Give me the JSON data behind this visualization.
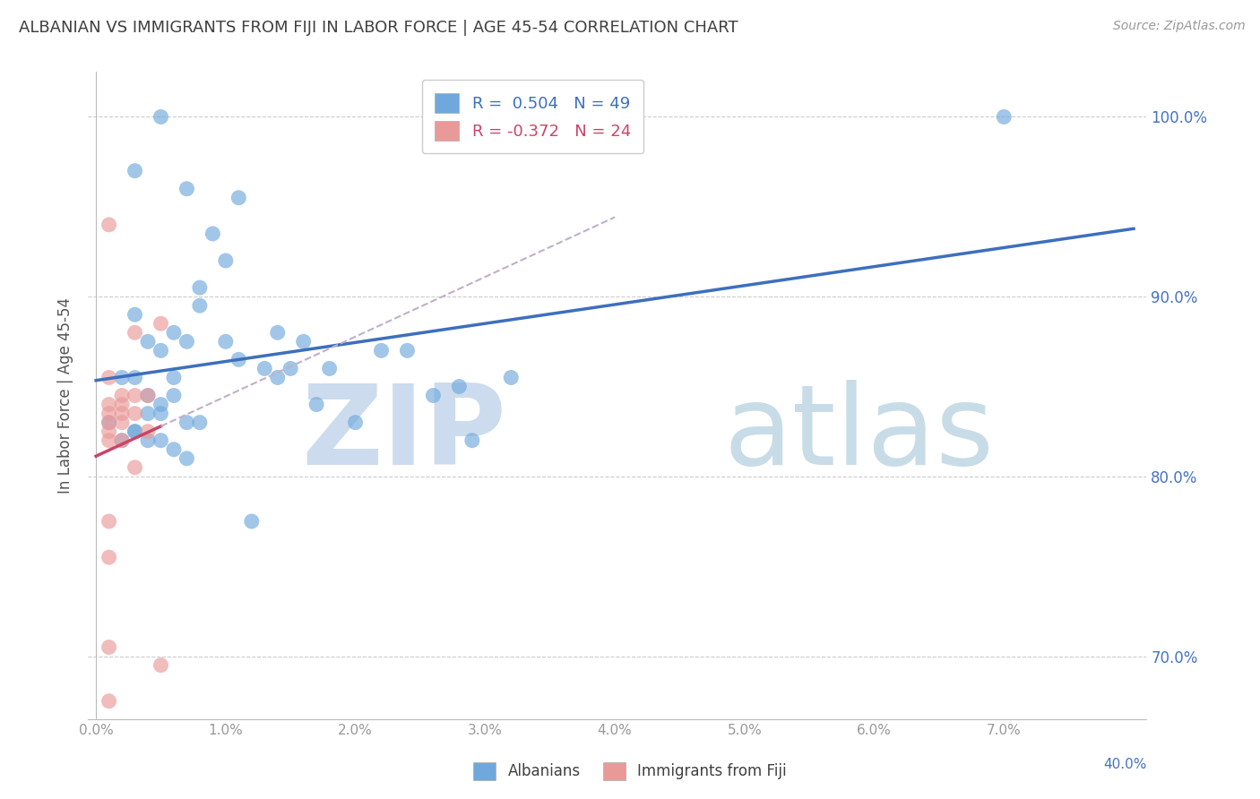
{
  "title": "ALBANIAN VS IMMIGRANTS FROM FIJI IN LABOR FORCE | AGE 45-54 CORRELATION CHART",
  "source": "Source: ZipAtlas.com",
  "ylabel": "In Labor Force | Age 45-54",
  "legend_label_blue": "Albanians",
  "legend_label_pink": "Immigrants from Fiji",
  "r_blue": 0.504,
  "n_blue": 49,
  "r_pink": -0.372,
  "n_pink": 24,
  "xlim": [
    -0.3,
    40.5
  ],
  "ylim": [
    0.665,
    1.025
  ],
  "xtick_vals": [
    0.0,
    5.0,
    10.0,
    15.0,
    20.0,
    25.0,
    30.0,
    35.0,
    40.0
  ],
  "xtick_labels": [
    "0.0%",
    "1.0%",
    "2.0%",
    "3.0%",
    "4.0%",
    "5.0%",
    "6.0%",
    "7.0%",
    ""
  ],
  "ytick_vals": [
    0.7,
    0.8,
    0.9,
    1.0
  ],
  "ytick_labels": [
    "70.0%",
    "80.0%",
    "90.0%",
    "100.0%"
  ],
  "blue_scatter_x": [
    2.5,
    1.5,
    5.5,
    4.5,
    5.0,
    4.0,
    3.5,
    7.0,
    1.5,
    2.0,
    2.5,
    3.0,
    4.0,
    5.0,
    5.5,
    6.5,
    3.0,
    3.5,
    1.0,
    1.5,
    2.0,
    2.5,
    3.0,
    3.5,
    4.0,
    1.5,
    2.0,
    2.5,
    0.5,
    1.0,
    1.5,
    2.0,
    2.5,
    3.0,
    3.5,
    14.5,
    10.0,
    8.0,
    12.0,
    9.0,
    13.0,
    16.0,
    11.0,
    14.0,
    6.0,
    35.0,
    7.0,
    7.5,
    8.5
  ],
  "blue_scatter_y": [
    1.0,
    0.97,
    0.955,
    0.935,
    0.92,
    0.905,
    0.96,
    0.88,
    0.89,
    0.875,
    0.87,
    0.88,
    0.895,
    0.875,
    0.865,
    0.86,
    0.855,
    0.875,
    0.855,
    0.855,
    0.845,
    0.84,
    0.845,
    0.83,
    0.83,
    0.825,
    0.835,
    0.835,
    0.83,
    0.82,
    0.825,
    0.82,
    0.82,
    0.815,
    0.81,
    0.82,
    0.83,
    0.875,
    0.87,
    0.86,
    0.845,
    0.855,
    0.87,
    0.85,
    0.775,
    1.0,
    0.855,
    0.86,
    0.84
  ],
  "pink_scatter_x": [
    0.5,
    1.5,
    2.5,
    0.5,
    1.0,
    1.5,
    2.0,
    0.5,
    1.0,
    1.5,
    0.5,
    1.0,
    0.5,
    1.0,
    0.5,
    2.0,
    0.5,
    1.0,
    1.5,
    0.5,
    0.5,
    0.5,
    2.5,
    0.5
  ],
  "pink_scatter_y": [
    0.94,
    0.88,
    0.885,
    0.855,
    0.845,
    0.845,
    0.845,
    0.84,
    0.84,
    0.835,
    0.835,
    0.835,
    0.83,
    0.83,
    0.825,
    0.825,
    0.82,
    0.82,
    0.805,
    0.775,
    0.755,
    0.705,
    0.695,
    0.675
  ],
  "blue_color": "#6fa8dc",
  "pink_color": "#ea9999",
  "blue_line_color": "#3d6fbe",
  "pink_line_color": "#cc4466",
  "pink_dash_color": "#c0b0c8",
  "watermark_zip_color": "#ccdcee",
  "watermark_atlas_color": "#c8dce8",
  "title_color": "#404040",
  "source_color": "#999999",
  "tick_color_right": "#4472c4",
  "tick_color_bottom": "#999999",
  "grid_color": "#cccccc"
}
